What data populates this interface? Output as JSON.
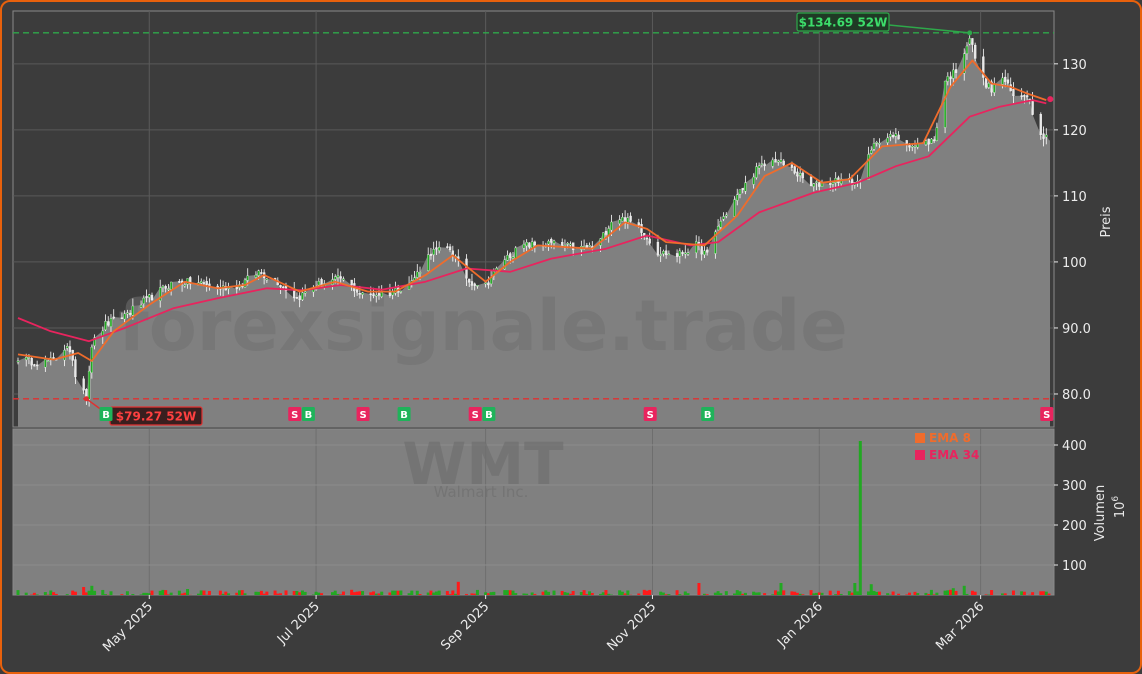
{
  "watermark": {
    "site": "forexsignale.trade",
    "ticker": "WMT",
    "company": "Walmart Inc."
  },
  "colors": {
    "background": "#3c3c3c",
    "plot_bg": "#808080",
    "frame": "#e8610c",
    "up": "#22a822",
    "down": "#ff1a1a",
    "ema_short": "#ef6c2c",
    "ema_long": "#e8245e",
    "buy": "#1fb35a",
    "sell": "#e8245e",
    "high_line": "#2ea84a",
    "low_line": "#e03030"
  },
  "chart_data": [
    {
      "type": "line",
      "name": "price",
      "ylabel": "Preis",
      "ylim": [
        75,
        138
      ],
      "yticks": [
        "80.0",
        "90.0",
        "100",
        "110",
        "120",
        "130"
      ],
      "ytick_values": [
        80,
        90,
        100,
        110,
        120,
        130
      ],
      "xticks": [
        "May 2025",
        "Jul 2025",
        "Sep 2025",
        "Nov 2025",
        "Jan 2026",
        "Mar 2026"
      ],
      "xtick_dates": [
        "2025-05-01",
        "2025-07-01",
        "2025-09-01",
        "2025-11-01",
        "2026-01-01",
        "2026-03-01"
      ],
      "xlim": [
        "2025-03-14",
        "2026-03-26"
      ],
      "grid": true,
      "price_series": [
        [
          "2025-03-14",
          85.5
        ],
        [
          "2025-03-20",
          84.8
        ],
        [
          "2025-03-27",
          85.0
        ],
        [
          "2025-04-01",
          87.5
        ],
        [
          "2025-04-04",
          83.0
        ],
        [
          "2025-04-08",
          80.0
        ],
        [
          "2025-04-10",
          87.5
        ],
        [
          "2025-04-15",
          90.5
        ],
        [
          "2025-04-22",
          92.0
        ],
        [
          "2025-05-01",
          94.5
        ],
        [
          "2025-05-10",
          97.0
        ],
        [
          "2025-05-20",
          96.8
        ],
        [
          "2025-05-26",
          96.0
        ],
        [
          "2025-06-03",
          96.5
        ],
        [
          "2025-06-10",
          98.5
        ],
        [
          "2025-06-17",
          97.0
        ],
        [
          "2025-06-24",
          94.5
        ],
        [
          "2025-07-01",
          96.5
        ],
        [
          "2025-07-10",
          97.5
        ],
        [
          "2025-07-18",
          95.0
        ],
        [
          "2025-07-28",
          95.3
        ],
        [
          "2025-08-05",
          97.0
        ],
        [
          "2025-08-12",
          101.5
        ],
        [
          "2025-08-19",
          102.0
        ],
        [
          "2025-08-26",
          97.0
        ],
        [
          "2025-09-01",
          96.5
        ],
        [
          "2025-09-08",
          100.5
        ],
        [
          "2025-09-15",
          102.5
        ],
        [
          "2025-09-25",
          102.8
        ],
        [
          "2025-10-05",
          102.0
        ],
        [
          "2025-10-12",
          102.5
        ],
        [
          "2025-10-18",
          107.0
        ],
        [
          "2025-10-27",
          105.5
        ],
        [
          "2025-11-03",
          101.5
        ],
        [
          "2025-11-10",
          101.0
        ],
        [
          "2025-11-17",
          102.5
        ],
        [
          "2025-11-21",
          101.0
        ],
        [
          "2025-11-25",
          105.5
        ],
        [
          "2025-12-02",
          110.0
        ],
        [
          "2025-12-09",
          114.0
        ],
        [
          "2025-12-16",
          115.5
        ],
        [
          "2025-12-22",
          114.0
        ],
        [
          "2025-12-29",
          111.5
        ],
        [
          "2026-01-08",
          112.5
        ],
        [
          "2026-01-15",
          112.0
        ],
        [
          "2026-01-22",
          118.5
        ],
        [
          "2026-01-29",
          119.0
        ],
        [
          "2026-02-05",
          117.5
        ],
        [
          "2026-02-12",
          118.5
        ],
        [
          "2026-02-16",
          127.5
        ],
        [
          "2026-02-20",
          129.0
        ],
        [
          "2026-02-25",
          134.0
        ],
        [
          "2026-03-01",
          128.0
        ],
        [
          "2026-03-05",
          126.0
        ],
        [
          "2026-03-09",
          128.0
        ],
        [
          "2026-03-13",
          125.0
        ],
        [
          "2026-03-18",
          125.5
        ],
        [
          "2026-03-21",
          121.5
        ],
        [
          "2026-03-24",
          119.0
        ],
        [
          "2026-03-26",
          119.0
        ]
      ],
      "ema_8": {
        "name": "EMA 8",
        "points": [
          [
            "2025-03-14",
            86.0
          ],
          [
            "2025-03-27",
            85.2
          ],
          [
            "2025-04-05",
            86.2
          ],
          [
            "2025-04-10",
            85.0
          ],
          [
            "2025-04-18",
            89.5
          ],
          [
            "2025-05-01",
            93.5
          ],
          [
            "2025-05-14",
            97.0
          ],
          [
            "2025-05-26",
            96.0
          ],
          [
            "2025-06-05",
            96.5
          ],
          [
            "2025-06-12",
            98.0
          ],
          [
            "2025-06-25",
            95.5
          ],
          [
            "2025-07-08",
            97.0
          ],
          [
            "2025-07-20",
            95.5
          ],
          [
            "2025-07-30",
            95.5
          ],
          [
            "2025-08-10",
            98.0
          ],
          [
            "2025-08-20",
            101.0
          ],
          [
            "2025-09-01",
            97.0
          ],
          [
            "2025-09-10",
            100.0
          ],
          [
            "2025-09-20",
            102.5
          ],
          [
            "2025-10-10",
            102.0
          ],
          [
            "2025-10-22",
            106.0
          ],
          [
            "2025-10-30",
            105.0
          ],
          [
            "2025-11-06",
            103.0
          ],
          [
            "2025-11-20",
            102.5
          ],
          [
            "2025-12-02",
            107.0
          ],
          [
            "2025-12-12",
            113.0
          ],
          [
            "2025-12-22",
            115.0
          ],
          [
            "2026-01-02",
            112.0
          ],
          [
            "2026-01-12",
            112.5
          ],
          [
            "2026-01-24",
            117.5
          ],
          [
            "2026-02-08",
            118.0
          ],
          [
            "2026-02-18",
            126.5
          ],
          [
            "2026-02-26",
            130.5
          ],
          [
            "2026-03-05",
            127.0
          ],
          [
            "2026-03-12",
            126.5
          ],
          [
            "2026-03-18",
            125.5
          ],
          [
            "2026-03-25",
            124.5
          ]
        ]
      },
      "ema_34": {
        "name": "EMA 34",
        "points": [
          [
            "2025-03-14",
            91.5
          ],
          [
            "2025-03-26",
            89.5
          ],
          [
            "2025-04-09",
            88.0
          ],
          [
            "2025-04-22",
            90.0
          ],
          [
            "2025-05-10",
            93.0
          ],
          [
            "2025-05-26",
            94.5
          ],
          [
            "2025-06-13",
            96.0
          ],
          [
            "2025-06-26",
            95.7
          ],
          [
            "2025-07-10",
            96.5
          ],
          [
            "2025-07-25",
            95.8
          ],
          [
            "2025-08-10",
            97.0
          ],
          [
            "2025-08-25",
            99.0
          ],
          [
            "2025-09-10",
            98.5
          ],
          [
            "2025-09-25",
            100.5
          ],
          [
            "2025-10-15",
            102.0
          ],
          [
            "2025-10-30",
            104.0
          ],
          [
            "2025-11-15",
            102.5
          ],
          [
            "2025-11-25",
            103.0
          ],
          [
            "2025-12-10",
            107.5
          ],
          [
            "2025-12-30",
            110.5
          ],
          [
            "2026-01-15",
            112.0
          ],
          [
            "2026-01-29",
            114.5
          ],
          [
            "2026-02-10",
            116.0
          ],
          [
            "2026-02-25",
            122.0
          ],
          [
            "2026-03-08",
            123.5
          ],
          [
            "2026-03-20",
            124.5
          ],
          [
            "2026-03-25",
            124.0
          ]
        ]
      },
      "annotations": [
        {
          "label": "$134.69 52W",
          "date": "2026-02-25",
          "value": 134.69,
          "kind": "high"
        },
        {
          "label": "$79.27 52W",
          "date": "2025-04-08",
          "value": 79.27,
          "kind": "low"
        }
      ],
      "signals": [
        {
          "date": "2025-04-15",
          "label": "B"
        },
        {
          "date": "2025-06-23",
          "label": "S"
        },
        {
          "date": "2025-06-28",
          "label": "B"
        },
        {
          "date": "2025-07-18",
          "label": "S"
        },
        {
          "date": "2025-08-02",
          "label": "B"
        },
        {
          "date": "2025-08-28",
          "label": "S"
        },
        {
          "date": "2025-09-02",
          "label": "B"
        },
        {
          "date": "2025-10-31",
          "label": "S"
        },
        {
          "date": "2025-11-21",
          "label": "B"
        },
        {
          "date": "2026-03-25",
          "label": "S"
        }
      ]
    },
    {
      "type": "bar",
      "name": "volume",
      "ylabel": "Volumen",
      "ylabel_exponent": "10",
      "ylabel_power": "6",
      "ylim": [
        25,
        440
      ],
      "yticks": [
        "100",
        "200",
        "300",
        "400"
      ],
      "ytick_values": [
        100,
        200,
        300,
        400
      ],
      "base_volume_millions": 30,
      "spikes": [
        {
          "date": "2025-04-07",
          "value": 45
        },
        {
          "date": "2025-04-10",
          "value": 48
        },
        {
          "date": "2025-05-15",
          "value": 40
        },
        {
          "date": "2025-08-22",
          "value": 58
        },
        {
          "date": "2025-11-18",
          "value": 55
        },
        {
          "date": "2025-12-18",
          "value": 55
        },
        {
          "date": "2026-01-14",
          "value": 55
        },
        {
          "date": "2026-01-16",
          "value": 410
        },
        {
          "date": "2026-01-20",
          "value": 52
        },
        {
          "date": "2026-02-19",
          "value": 42
        },
        {
          "date": "2026-02-23",
          "value": 48
        }
      ]
    }
  ],
  "legend": {
    "ema_short_label": "EMA 8",
    "ema_long_label": "EMA 34"
  }
}
